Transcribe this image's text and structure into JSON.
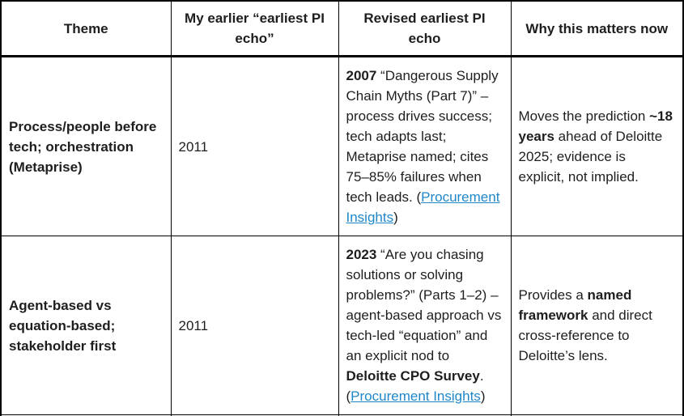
{
  "colors": {
    "border": "#000000",
    "text": "#1e1e1e",
    "link": "#1f87c9",
    "background": "#ffffff"
  },
  "table": {
    "headers": {
      "theme": "Theme",
      "earlier": "My earlier “earliest PI echo”",
      "revised": "Revised earliest PI echo",
      "why": "Why this matters now"
    },
    "rows": [
      {
        "theme": "Process/people before tech; orchestration (Metaprise)",
        "earlier": "2011",
        "revised": {
          "year": "2007",
          "body": " “Dangerous Supply Chain Myths (Part 7)” – process drives success; tech adapts last; Metaprise named; cites 75–85% failures when tech leads. (",
          "link": "Procurement Insights",
          "close": ")"
        },
        "why": {
          "pre": "Moves the prediction ",
          "bold": "~18 years",
          "post": " ahead of Deloitte 2025; evidence is explicit, not implied."
        }
      },
      {
        "theme": "Agent-based vs equation-based; stakeholder first",
        "earlier": "2011",
        "revised": {
          "year": "2023",
          "body": " “Are you chasing solutions or solving problems?” (Parts 1–2) – agent-based approach vs tech-led “equation” and an explicit nod to ",
          "bold": "Deloitte CPO Survey",
          "after_bold": ". (",
          "link": "Procurement Insights",
          "close": ")"
        },
        "why": {
          "pre": "Provides a ",
          "bold": "named framework",
          "post": " and direct cross-reference to Deloitte’s lens."
        }
      }
    ]
  }
}
